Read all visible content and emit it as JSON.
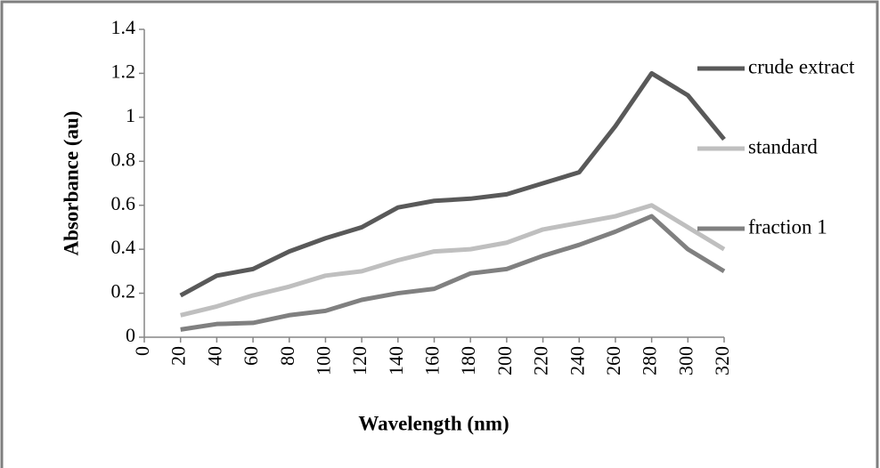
{
  "chart_data": {
    "type": "line",
    "x_label": "Wavelength (nm)",
    "y_label": "Absorbance (au)",
    "x": [
      20,
      40,
      60,
      80,
      100,
      120,
      140,
      160,
      180,
      200,
      220,
      240,
      260,
      280,
      300,
      320
    ],
    "series": [
      {
        "name": "crude extract",
        "color": "#595959",
        "values": [
          0.19,
          0.28,
          0.31,
          0.39,
          0.45,
          0.5,
          0.59,
          0.62,
          0.63,
          0.65,
          0.7,
          0.75,
          0.96,
          1.2,
          1.1,
          0.9
        ]
      },
      {
        "name": "standard",
        "color": "#bfbfbf",
        "values": [
          0.1,
          0.14,
          0.19,
          0.23,
          0.28,
          0.3,
          0.35,
          0.39,
          0.4,
          0.43,
          0.49,
          0.52,
          0.55,
          0.6,
          0.5,
          0.4
        ]
      },
      {
        "name": "fraction 1",
        "color": "#808080",
        "values": [
          0.035,
          0.06,
          0.065,
          0.1,
          0.12,
          0.17,
          0.2,
          0.22,
          0.29,
          0.31,
          0.37,
          0.42,
          0.48,
          0.55,
          0.4,
          0.3
        ]
      }
    ],
    "xlim": [
      0,
      320
    ],
    "xticks": [
      0,
      20,
      40,
      60,
      80,
      100,
      120,
      140,
      160,
      180,
      200,
      220,
      240,
      260,
      280,
      300,
      320
    ],
    "ylim": [
      0,
      1.4
    ],
    "yticks": [
      0,
      0.2,
      0.4,
      0.6,
      0.8,
      1,
      1.2,
      1.4
    ],
    "grid": false,
    "legend": "right"
  }
}
